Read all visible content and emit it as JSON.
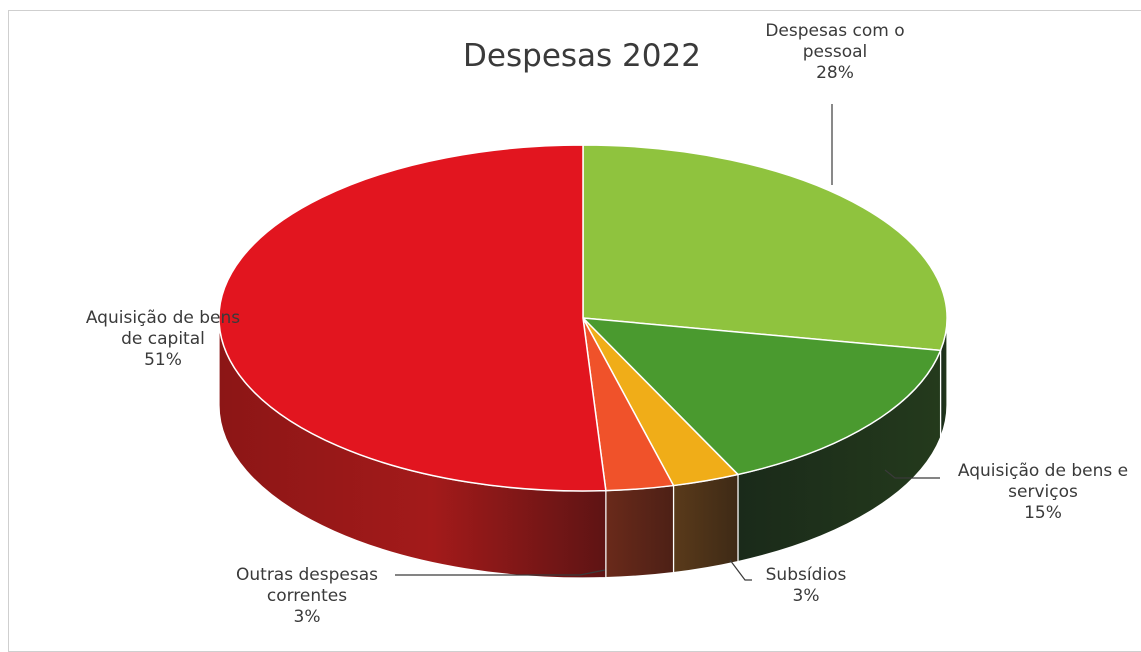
{
  "chart_data": {
    "type": "pie",
    "title": "Despesas 2022",
    "slices": [
      {
        "name": "Despesas com o pessoal",
        "label_lines": [
          "Despesas com o",
          "pessoal"
        ],
        "percent_label": "28%",
        "value": 28,
        "color": "#8fc33e"
      },
      {
        "name": "Aquisição de bens e serviços",
        "label_lines": [
          "Aquisição  de bens e",
          "serviços"
        ],
        "percent_label": "15%",
        "value": 15,
        "color": "#4a9a2f"
      },
      {
        "name": "Subsídios",
        "label_lines": [
          "Subsídios"
        ],
        "percent_label": "3%",
        "value": 3,
        "color": "#f0ad18"
      },
      {
        "name": "Outras despesas correntes",
        "label_lines": [
          "Outras despesas",
          "correntes"
        ],
        "percent_label": "3%",
        "value": 3,
        "color": "#f0522a"
      },
      {
        "name": "Aquisição de bens de capital",
        "label_lines": [
          "Aquisição de bens",
          "de capital"
        ],
        "percent_label": "51%",
        "value": 51,
        "color": "#e2151f"
      }
    ],
    "style": "3d-pie"
  }
}
